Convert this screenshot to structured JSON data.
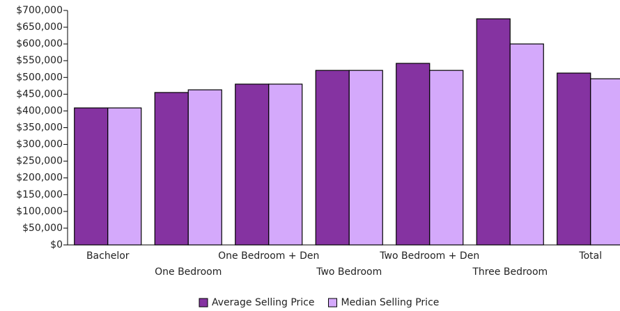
{
  "chart_data": {
    "type": "bar",
    "categories": [
      "Bachelor",
      "One Bedroom",
      "One Bedroom + Den",
      "Two Bedroom",
      "Two Bedroom + Den",
      "Three Bedroom",
      "Total"
    ],
    "series": [
      {
        "name": "Average Selling Price",
        "color": "#8533a1",
        "values": [
          409000,
          455000,
          480000,
          521000,
          542000,
          675000,
          513000
        ]
      },
      {
        "name": "Median Selling Price",
        "color": "#d4a9fb",
        "values": [
          409000,
          463000,
          480000,
          521000,
          521000,
          600000,
          496000
        ]
      }
    ],
    "ylim": [
      0,
      700000
    ],
    "yticks": [
      {
        "value": 0,
        "label": "$0"
      },
      {
        "value": 50000,
        "label": "$50,000"
      },
      {
        "value": 100000,
        "label": "$100,000"
      },
      {
        "value": 150000,
        "label": "$150,000"
      },
      {
        "value": 200000,
        "label": "$200,000"
      },
      {
        "value": 250000,
        "label": "$250,000"
      },
      {
        "value": 300000,
        "label": "$300,000"
      },
      {
        "value": 350000,
        "label": "$350,000"
      },
      {
        "value": 400000,
        "label": "$400,000"
      },
      {
        "value": 450000,
        "label": "$450,000"
      },
      {
        "value": 500000,
        "label": "$500,000"
      },
      {
        "value": 550000,
        "label": "$550,000"
      },
      {
        "value": 600000,
        "label": "$600,000"
      },
      {
        "value": 650000,
        "label": "$650,000"
      },
      {
        "value": 700000,
        "label": "$700,000"
      }
    ],
    "legend": "bottom"
  }
}
